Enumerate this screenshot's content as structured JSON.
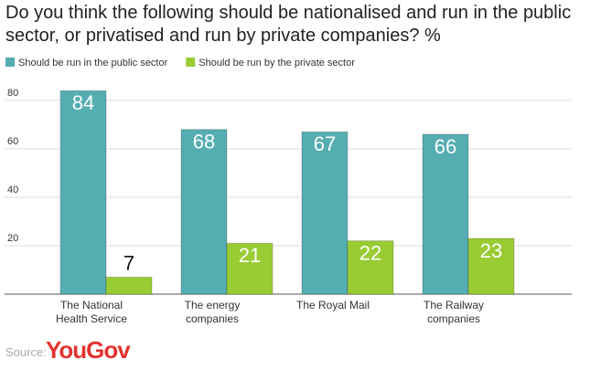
{
  "chart_data": {
    "type": "bar",
    "title": "Do you think the following should be nationalised and run in the public sector, or privatised and run by private companies? %",
    "categories": [
      "The National\nHealth Service",
      "The energy\ncompanies",
      "The Royal Mail",
      "The Railway\ncompanies"
    ],
    "series": [
      {
        "name": "Should be run in the public sector",
        "color": "#55adb1",
        "values": [
          84,
          68,
          67,
          66
        ]
      },
      {
        "name": "Should be run by the private sector",
        "color": "#99cc33",
        "values": [
          7,
          21,
          22,
          23
        ]
      }
    ],
    "ylim": [
      0,
      86
    ],
    "yticks": [
      20,
      40,
      60,
      80
    ],
    "grid": true,
    "source": "Source:",
    "logo": "YouGov"
  }
}
